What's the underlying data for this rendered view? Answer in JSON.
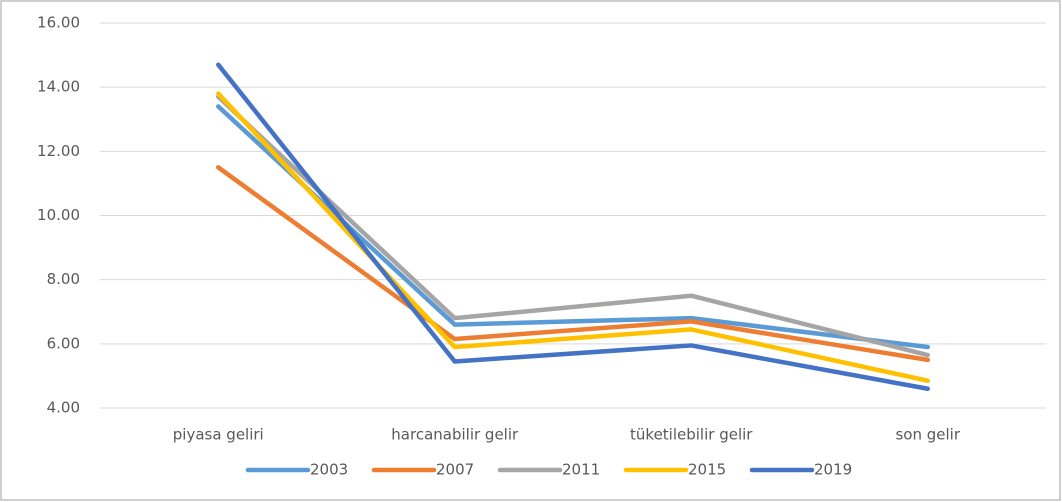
{
  "chart_data": {
    "type": "line",
    "categories": [
      "piyasa geliri",
      "harcanabilir gelir",
      "tüketilebilir gelir",
      "son gelir"
    ],
    "series": [
      {
        "name": "2003",
        "color": "#5b9bd5",
        "values": [
          13.4,
          6.6,
          6.8,
          5.9
        ]
      },
      {
        "name": "2007",
        "color": "#ed7d31",
        "values": [
          11.5,
          6.15,
          6.7,
          5.5
        ]
      },
      {
        "name": "2011",
        "color": "#a5a5a5",
        "values": [
          13.7,
          6.8,
          7.5,
          5.65
        ]
      },
      {
        "name": "2015",
        "color": "#ffc000",
        "values": [
          13.8,
          5.9,
          6.45,
          4.85
        ]
      },
      {
        "name": "2019",
        "color": "#4472c4",
        "values": [
          14.7,
          5.45,
          5.95,
          4.6
        ]
      }
    ],
    "ylim": [
      4,
      16
    ],
    "yticks": [
      {
        "value": 4,
        "label": "4.00"
      },
      {
        "value": 6,
        "label": "6.00"
      },
      {
        "value": 8,
        "label": "8.00"
      },
      {
        "value": 10,
        "label": "10.00"
      },
      {
        "value": 12,
        "label": "12.00"
      },
      {
        "value": 14,
        "label": "14.00"
      },
      {
        "value": 16,
        "label": "16.00"
      }
    ],
    "grid": true,
    "legend": "bottom"
  }
}
